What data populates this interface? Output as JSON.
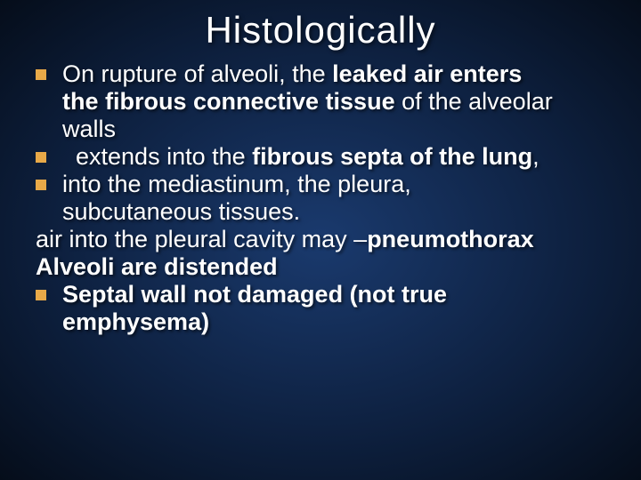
{
  "title": "Histologically",
  "lines": [
    {
      "bullet": true,
      "pre": "On rupture of alveoli, the ",
      "bold": "leaked air enters",
      "post": ""
    },
    {
      "bullet": false,
      "cont": true,
      "pre": "",
      "bold": "the fibrous connective tissue",
      "post": " of the alveolar"
    },
    {
      "bullet": false,
      "cont": true,
      "pre": "walls",
      "bold": "",
      "post": ""
    },
    {
      "bullet": true,
      "pre": "  extends into the ",
      "bold": "fibrous septa of the lung",
      "post": ","
    },
    {
      "bullet": true,
      "pre": "into the mediastinum, the pleura,",
      "bold": "",
      "post": ""
    },
    {
      "bullet": false,
      "cont": true,
      "pre": "subcutaneous tissues.",
      "bold": "",
      "post": ""
    },
    {
      "bullet": false,
      "cont": false,
      "pre": "air into the pleural cavity may –",
      "bold": "pneumothorax",
      "post": ""
    },
    {
      "bullet": false,
      "cont": false,
      "pre": "",
      "bold": "Alveoli are distended",
      "post": ""
    },
    {
      "bullet": true,
      "pre": "",
      "bold": "Septal wall not damaged (not true",
      "post": ""
    },
    {
      "bullet": false,
      "cont": true,
      "pre": "",
      "bold": "emphysema)",
      "post": ""
    }
  ],
  "colors": {
    "bullet": "#e8a948",
    "text": "#ffffff",
    "bg_center": "#1a3a6e",
    "bg_edge": "#050d1a"
  },
  "fonts": {
    "title_size": 42,
    "body_size": 27
  }
}
